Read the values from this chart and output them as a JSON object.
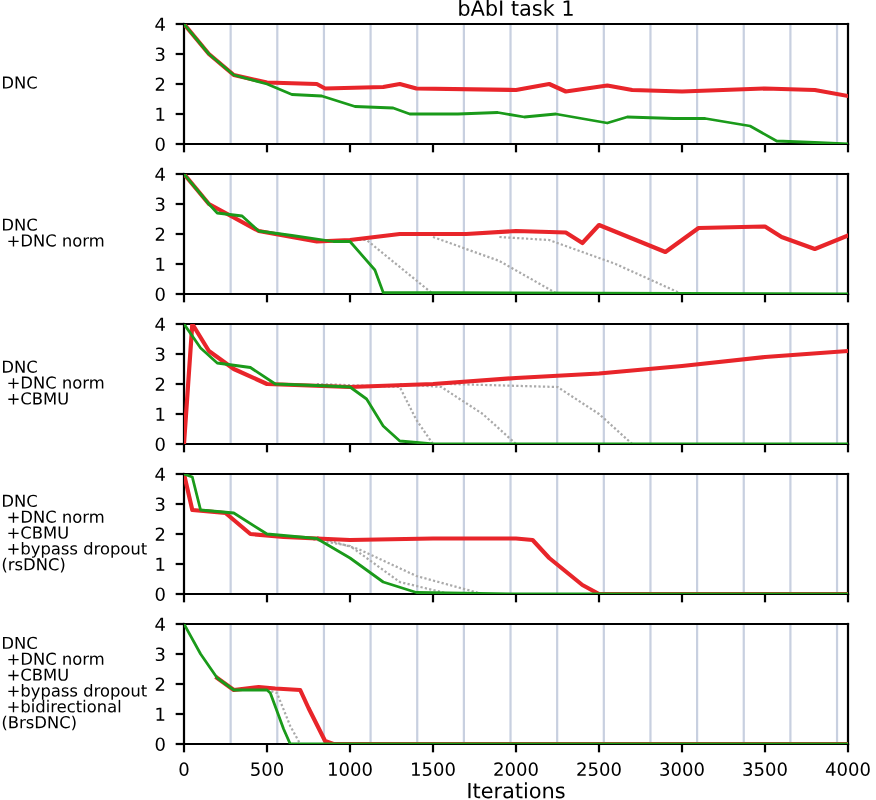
{
  "chart_data": [
    {
      "type": "line",
      "title": "bAbI task 1",
      "ylabel": "DNC",
      "xlim": [
        0,
        4000
      ],
      "ylim": [
        0,
        4
      ],
      "xticks": [
        0,
        500,
        1000,
        1500,
        2000,
        2500,
        3000,
        3500,
        4000
      ],
      "yticks": [
        0,
        1,
        2,
        3,
        4
      ],
      "tick_labels": "y",
      "ref_lines": [
        {
          "axis": "x",
          "value": 281,
          "color": "#c8d0e0"
        },
        {
          "axis": "x",
          "value": 562,
          "color": "#c8d0e0"
        },
        {
          "axis": "x",
          "value": 843,
          "color": "#c8d0e0"
        },
        {
          "axis": "x",
          "value": 1124,
          "color": "#c8d0e0"
        },
        {
          "axis": "x",
          "value": 1405,
          "color": "#c8d0e0"
        },
        {
          "axis": "x",
          "value": 1686,
          "color": "#c8d0e0"
        },
        {
          "axis": "x",
          "value": 1967,
          "color": "#c8d0e0"
        },
        {
          "axis": "x",
          "value": 2248,
          "color": "#c8d0e0"
        },
        {
          "axis": "x",
          "value": 2529,
          "color": "#c8d0e0"
        },
        {
          "axis": "x",
          "value": 2810,
          "color": "#c8d0e0"
        },
        {
          "axis": "x",
          "value": 3091,
          "color": "#c8d0e0"
        },
        {
          "axis": "x",
          "value": 3372,
          "color": "#c8d0e0"
        },
        {
          "axis": "x",
          "value": 3653,
          "color": "#c8d0e0"
        },
        {
          "axis": "x",
          "value": 3934,
          "color": "#c8d0e0"
        }
      ],
      "series": [
        {
          "color": "#e8252a",
          "x": [
            0,
            150,
            300,
            500,
            800,
            850,
            1200,
            1300,
            1400,
            2000,
            2200,
            2300,
            2550,
            2700,
            3000,
            3500,
            3800,
            4000
          ],
          "values": [
            4,
            3,
            2.3,
            2.05,
            2.0,
            1.85,
            1.9,
            2.0,
            1.85,
            1.8,
            2.0,
            1.75,
            1.95,
            1.8,
            1.75,
            1.85,
            1.8,
            1.6
          ]
        },
        {
          "color": "#1a9a1a",
          "x": [
            0,
            150,
            300,
            500,
            650,
            830,
            1030,
            1260,
            1360,
            1650,
            1890,
            2050,
            2240,
            2550,
            2670,
            2950,
            3140,
            3410,
            3570,
            3800,
            4000
          ],
          "values": [
            4,
            3,
            2.3,
            2.0,
            1.65,
            1.6,
            1.25,
            1.2,
            1.0,
            1.0,
            1.05,
            0.9,
            1.0,
            0.7,
            0.9,
            0.85,
            0.85,
            0.6,
            0.1,
            0.05,
            0
          ]
        }
      ]
    },
    {
      "type": "line",
      "ylabel": "DNC\n +DNC norm",
      "xlim": [
        0,
        4000
      ],
      "ylim": [
        0,
        4
      ],
      "xticks": [
        0,
        500,
        1000,
        1500,
        2000,
        2500,
        3000,
        3500,
        4000
      ],
      "yticks": [
        0,
        1,
        2,
        3,
        4
      ],
      "tick_labels": "y",
      "ref_lines": [
        {
          "axis": "x",
          "value": 281,
          "color": "#c8d0e0"
        },
        {
          "axis": "x",
          "value": 562,
          "color": "#c8d0e0"
        },
        {
          "axis": "x",
          "value": 843,
          "color": "#c8d0e0"
        },
        {
          "axis": "x",
          "value": 1124,
          "color": "#c8d0e0"
        },
        {
          "axis": "x",
          "value": 1405,
          "color": "#c8d0e0"
        },
        {
          "axis": "x",
          "value": 1686,
          "color": "#c8d0e0"
        },
        {
          "axis": "x",
          "value": 1967,
          "color": "#c8d0e0"
        },
        {
          "axis": "x",
          "value": 2248,
          "color": "#c8d0e0"
        },
        {
          "axis": "x",
          "value": 2529,
          "color": "#c8d0e0"
        },
        {
          "axis": "x",
          "value": 2810,
          "color": "#c8d0e0"
        },
        {
          "axis": "x",
          "value": 3091,
          "color": "#c8d0e0"
        },
        {
          "axis": "x",
          "value": 3372,
          "color": "#c8d0e0"
        },
        {
          "axis": "x",
          "value": 3653,
          "color": "#c8d0e0"
        },
        {
          "axis": "x",
          "value": 3934,
          "color": "#c8d0e0"
        }
      ],
      "series": [
        {
          "color": "#aaaaaa",
          "line_style": "dotted",
          "x": [
            1000,
            1100,
            1300,
            1500
          ],
          "values": [
            1.8,
            1.8,
            0.9,
            0
          ]
        },
        {
          "color": "#aaaaaa",
          "line_style": "dotted",
          "x": [
            1500,
            1900,
            2250
          ],
          "values": [
            1.9,
            1.1,
            0
          ]
        },
        {
          "color": "#aaaaaa",
          "line_style": "dotted",
          "x": [
            1900,
            2200,
            2600,
            3000
          ],
          "values": [
            1.9,
            1.8,
            1.0,
            0
          ]
        },
        {
          "color": "#e8252a",
          "x": [
            0,
            150,
            250,
            450,
            800,
            1000,
            1300,
            1700,
            2000,
            2300,
            2400,
            2500,
            2900,
            3100,
            3500,
            3600,
            3800,
            4000
          ],
          "values": [
            4,
            3,
            2.7,
            2.1,
            1.75,
            1.8,
            2.0,
            2.0,
            2.1,
            2.05,
            1.7,
            2.3,
            1.4,
            2.2,
            2.25,
            1.9,
            1.5,
            1.95
          ]
        },
        {
          "color": "#1a9a1a",
          "x": [
            0,
            150,
            200,
            350,
            450,
            650,
            900,
            1000,
            1150,
            1200,
            4000
          ],
          "values": [
            4,
            3.0,
            2.7,
            2.6,
            2.1,
            1.95,
            1.75,
            1.75,
            0.8,
            0.05,
            0
          ]
        }
      ]
    },
    {
      "type": "line",
      "ylabel": "DNC\n +DNC norm\n +CBMU",
      "xlim": [
        0,
        4000
      ],
      "ylim": [
        0,
        4
      ],
      "xticks": [
        0,
        500,
        1000,
        1500,
        2000,
        2500,
        3000,
        3500,
        4000
      ],
      "yticks": [
        0,
        1,
        2,
        3,
        4
      ],
      "tick_labels": "y",
      "ref_lines": [
        {
          "axis": "x",
          "value": 281,
          "color": "#c8d0e0"
        },
        {
          "axis": "x",
          "value": 562,
          "color": "#c8d0e0"
        },
        {
          "axis": "x",
          "value": 843,
          "color": "#c8d0e0"
        },
        {
          "axis": "x",
          "value": 1124,
          "color": "#c8d0e0"
        },
        {
          "axis": "x",
          "value": 1405,
          "color": "#c8d0e0"
        },
        {
          "axis": "x",
          "value": 1686,
          "color": "#c8d0e0"
        },
        {
          "axis": "x",
          "value": 1967,
          "color": "#c8d0e0"
        },
        {
          "axis": "x",
          "value": 2248,
          "color": "#c8d0e0"
        },
        {
          "axis": "x",
          "value": 2529,
          "color": "#c8d0e0"
        },
        {
          "axis": "x",
          "value": 2810,
          "color": "#c8d0e0"
        },
        {
          "axis": "x",
          "value": 3091,
          "color": "#c8d0e0"
        },
        {
          "axis": "x",
          "value": 3372,
          "color": "#c8d0e0"
        },
        {
          "axis": "x",
          "value": 3653,
          "color": "#c8d0e0"
        },
        {
          "axis": "x",
          "value": 3934,
          "color": "#c8d0e0"
        }
      ],
      "series": [
        {
          "color": "#aaaaaa",
          "line_style": "dotted",
          "x": [
            800,
            1300,
            1400,
            1500
          ],
          "values": [
            2.0,
            1.9,
            0.8,
            0
          ]
        },
        {
          "color": "#aaaaaa",
          "line_style": "dotted",
          "x": [
            1300,
            1550,
            1800,
            2000
          ],
          "values": [
            2.0,
            1.9,
            1.0,
            0
          ]
        },
        {
          "color": "#aaaaaa",
          "line_style": "dotted",
          "x": [
            1600,
            2250,
            2500,
            2700
          ],
          "values": [
            2.0,
            1.9,
            1.0,
            0
          ]
        },
        {
          "color": "#e8252a",
          "x": [
            0,
            50,
            150,
            300,
            500,
            1000,
            1500,
            2000,
            2500,
            3000,
            3500,
            4000
          ],
          "values": [
            0,
            4,
            3.1,
            2.5,
            2.0,
            1.9,
            2.0,
            2.2,
            2.35,
            2.6,
            2.9,
            3.1
          ]
        },
        {
          "color": "#1a9a1a",
          "x": [
            0,
            100,
            200,
            400,
            550,
            800,
            1000,
            1100,
            1200,
            1300,
            1500,
            4000
          ],
          "values": [
            4,
            3.2,
            2.7,
            2.55,
            2.0,
            1.95,
            1.9,
            1.5,
            0.6,
            0.1,
            0,
            0
          ]
        }
      ]
    },
    {
      "type": "line",
      "ylabel": "DNC\n +DNC norm\n +CBMU\n +bypass dropout\n(rsDNC)",
      "xlim": [
        0,
        4000
      ],
      "ylim": [
        0,
        4
      ],
      "xticks": [
        0,
        500,
        1000,
        1500,
        2000,
        2500,
        3000,
        3500,
        4000
      ],
      "yticks": [
        0,
        1,
        2,
        3,
        4
      ],
      "tick_labels": "y",
      "ref_lines": [
        {
          "axis": "x",
          "value": 281,
          "color": "#c8d0e0"
        },
        {
          "axis": "x",
          "value": 562,
          "color": "#c8d0e0"
        },
        {
          "axis": "x",
          "value": 843,
          "color": "#c8d0e0"
        },
        {
          "axis": "x",
          "value": 1124,
          "color": "#c8d0e0"
        },
        {
          "axis": "x",
          "value": 1405,
          "color": "#c8d0e0"
        },
        {
          "axis": "x",
          "value": 1686,
          "color": "#c8d0e0"
        },
        {
          "axis": "x",
          "value": 1967,
          "color": "#c8d0e0"
        },
        {
          "axis": "x",
          "value": 2248,
          "color": "#c8d0e0"
        },
        {
          "axis": "x",
          "value": 2529,
          "color": "#c8d0e0"
        },
        {
          "axis": "x",
          "value": 2810,
          "color": "#c8d0e0"
        },
        {
          "axis": "x",
          "value": 3091,
          "color": "#c8d0e0"
        },
        {
          "axis": "x",
          "value": 3372,
          "color": "#c8d0e0"
        },
        {
          "axis": "x",
          "value": 3653,
          "color": "#c8d0e0"
        },
        {
          "axis": "x",
          "value": 3934,
          "color": "#c8d0e0"
        }
      ],
      "series": [
        {
          "color": "#aaaaaa",
          "line_style": "dotted",
          "x": [
            700,
            1000,
            1300,
            1600
          ],
          "values": [
            1.9,
            1.6,
            0.4,
            0
          ]
        },
        {
          "color": "#aaaaaa",
          "line_style": "dotted",
          "x": [
            800,
            1050,
            1400,
            1800
          ],
          "values": [
            1.9,
            1.5,
            0.6,
            0
          ]
        },
        {
          "color": "#e8252a",
          "x": [
            0,
            50,
            250,
            400,
            600,
            800,
            1000,
            1500,
            2000,
            2100,
            2200,
            2400,
            2500,
            4000
          ],
          "values": [
            4,
            2.8,
            2.7,
            2.0,
            1.9,
            1.85,
            1.8,
            1.85,
            1.85,
            1.8,
            1.2,
            0.3,
            0,
            0
          ]
        },
        {
          "color": "#1a9a1a",
          "x": [
            0,
            50,
            100,
            300,
            500,
            800,
            1000,
            1200,
            1400,
            2000,
            4000
          ],
          "values": [
            4,
            3.9,
            2.8,
            2.7,
            2.0,
            1.85,
            1.2,
            0.4,
            0.05,
            0,
            0
          ]
        }
      ]
    },
    {
      "type": "line",
      "ylabel": "DNC\n +DNC norm\n +CBMU\n +bypass dropout\n +bidirectional\n(BrsDNC)",
      "xlabel": "Iterations",
      "xlim": [
        0,
        4000
      ],
      "ylim": [
        0,
        4
      ],
      "xticks": [
        0,
        500,
        1000,
        1500,
        2000,
        2500,
        3000,
        3500,
        4000
      ],
      "yticks": [
        0,
        1,
        2,
        3,
        4
      ],
      "ref_lines": [
        {
          "axis": "x",
          "value": 281,
          "color": "#c8d0e0"
        },
        {
          "axis": "x",
          "value": 562,
          "color": "#c8d0e0"
        },
        {
          "axis": "x",
          "value": 843,
          "color": "#c8d0e0"
        },
        {
          "axis": "x",
          "value": 1124,
          "color": "#c8d0e0"
        },
        {
          "axis": "x",
          "value": 1405,
          "color": "#c8d0e0"
        },
        {
          "axis": "x",
          "value": 1686,
          "color": "#c8d0e0"
        },
        {
          "axis": "x",
          "value": 1967,
          "color": "#c8d0e0"
        },
        {
          "axis": "x",
          "value": 2248,
          "color": "#c8d0e0"
        },
        {
          "axis": "x",
          "value": 2529,
          "color": "#c8d0e0"
        },
        {
          "axis": "x",
          "value": 2810,
          "color": "#c8d0e0"
        },
        {
          "axis": "x",
          "value": 3091,
          "color": "#c8d0e0"
        },
        {
          "axis": "x",
          "value": 3372,
          "color": "#c8d0e0"
        },
        {
          "axis": "x",
          "value": 3653,
          "color": "#c8d0e0"
        },
        {
          "axis": "x",
          "value": 3934,
          "color": "#c8d0e0"
        }
      ],
      "series": [
        {
          "color": "#aaaaaa",
          "line_style": "dotted",
          "x": [
            500,
            560,
            640,
            700
          ],
          "values": [
            1.8,
            1.7,
            0.6,
            0
          ]
        },
        {
          "color": "#e8252a",
          "x": [
            200,
            300,
            450,
            550,
            700,
            750,
            850,
            900,
            4000
          ],
          "values": [
            2.2,
            1.8,
            1.9,
            1.85,
            1.8,
            1.2,
            0.1,
            0,
            0
          ]
        },
        {
          "color": "#1a9a1a",
          "x": [
            0,
            100,
            200,
            300,
            400,
            500,
            520,
            600,
            640,
            4000
          ],
          "values": [
            4,
            3.0,
            2.2,
            1.8,
            1.8,
            1.8,
            1.7,
            0.5,
            0,
            0
          ]
        }
      ]
    }
  ]
}
